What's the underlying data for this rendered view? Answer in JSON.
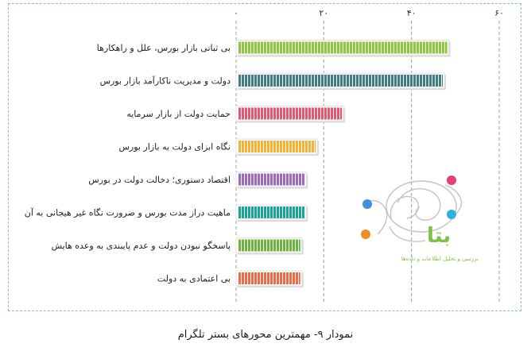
{
  "chart_data": {
    "type": "bar",
    "orientation": "horizontal",
    "direction": "rtl",
    "categories": [
      "بی ثباتی بازار بورس، علل و راهکارها",
      "دولت و مدیریت ناکارآمد بازار بورس",
      "حمایت دولت از بازار سرمایه",
      "نگاه ابزای دولت به بازار بورس",
      "اقتصاد دستوری؛ دخالت دولت در بورس",
      "ماهیت دراز مدت بورس و ضرورت نگاه غیر هیجانی به آن",
      "پاسخگو نبودن دولت و عدم پایبندی به وعده هایش",
      "بی اعتمادی به دولت"
    ],
    "values": [
      48.5,
      47.5,
      24.5,
      18.5,
      16,
      16,
      15,
      15
    ],
    "colors": [
      "#8cc63f",
      "#3f7f86",
      "#e8566b",
      "#f2b234",
      "#9b6bbf",
      "#16a596",
      "#69b63b",
      "#ef6a45"
    ],
    "xlim": [
      0,
      60
    ],
    "ticks": [
      0,
      20,
      40,
      60
    ],
    "tick_labels": [
      "۰",
      "۲۰",
      "۴۰",
      "۶۰"
    ],
    "grid": "vertical dashed",
    "caption": "نمودار ۹- مهمترین محورهای بستر تلگرام"
  },
  "watermark": {
    "word": "بتا",
    "tagline": "بررسی و تحلیل اطلاعات و داده‌ها"
  }
}
